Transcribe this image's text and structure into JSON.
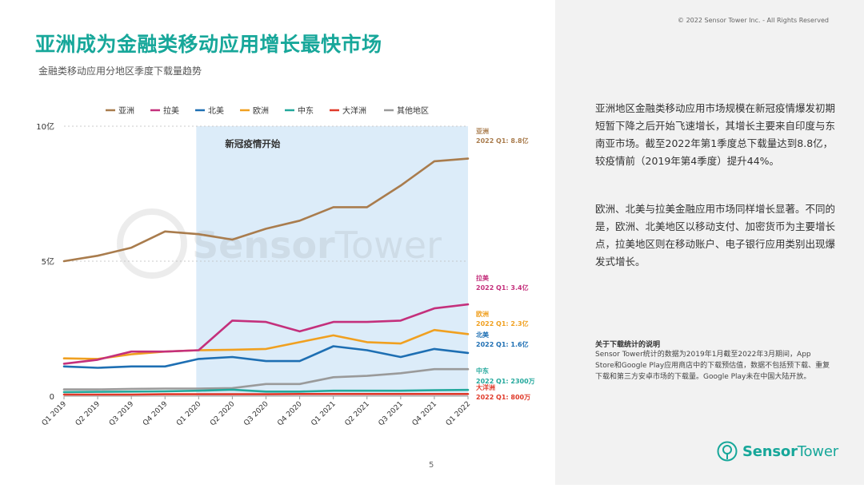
{
  "copyright": "© 2022 Sensor Tower Inc. - All Rights Reserved",
  "title": "亚洲成为金融类移动应用增长最快市场",
  "subtitle": "金融类移动应用分地区季度下载量趋势",
  "paragraph1": "亚洲地区金融类移动应用市场规模在新冠疫情爆发初期短暂下降之后开始飞速增长，其增长主要来自印度与东南亚市场。截至2022年第1季度总下载量达到8.8亿，较疫情前（2019年第4季度）提升44%。",
  "paragraph2": "欧洲、北美与拉美金融应用市场同样增长显著。不同的是，欧洲、北美地区以移动支付、加密货币为主要增长点，拉美地区则在移动账户、电子银行应用类别出现爆发式增长。",
  "note_title": "关于下载统计的说明",
  "note_body": "Sensor Tower统计的数据为2019年1月截至2022年3月期间，App Store和Google Play应用商店中的下载预估值，数据不包括预下载、重复下载和第三方安卓市场的下载量。Google Play未在中国大陆开放。",
  "page_number": "5",
  "logo": {
    "brand_bold": "Sensor",
    "brand_light": "Tower",
    "icon": "sensor-tower-logo-icon"
  },
  "watermark": {
    "brand_bold": "Sensor",
    "brand_light": "Tower"
  },
  "colors": {
    "accent": "#17a79a",
    "shade": "#dcecf9"
  },
  "chart_data": {
    "type": "line",
    "categories": [
      "Q1 2019",
      "Q2 2019",
      "Q3 2019",
      "Q4 2019",
      "Q1 2020",
      "Q2 2020",
      "Q3 2020",
      "Q4 2020",
      "Q1 2021",
      "Q2 2021",
      "Q3 2021",
      "Q4 2021",
      "Q1 2022"
    ],
    "ylim": [
      0,
      10
    ],
    "yticks": [
      {
        "value": 0,
        "label": "0"
      },
      {
        "value": 5,
        "label": "5亿"
      },
      {
        "value": 10,
        "label": "10亿"
      }
    ],
    "grid": true,
    "shaded_region": {
      "from_index": 4,
      "to_index": 12,
      "label": "新冠疫情开始"
    },
    "legend_position": "top",
    "series": [
      {
        "name": "亚洲",
        "color": "#a97c4d",
        "values": [
          5.0,
          5.2,
          5.5,
          6.1,
          6.0,
          5.8,
          6.2,
          6.5,
          7.0,
          7.0,
          7.8,
          8.7,
          8.8
        ],
        "end_label_name": "亚洲",
        "end_label_value": "2022 Q1: 8.8亿"
      },
      {
        "name": "拉美",
        "color": "#c4307c",
        "values": [
          1.2,
          1.35,
          1.65,
          1.65,
          1.7,
          2.8,
          2.75,
          2.4,
          2.75,
          2.75,
          2.8,
          3.25,
          3.4
        ],
        "end_label_name": "拉美",
        "end_label_value": "2022 Q1: 3.4亿"
      },
      {
        "name": "北美",
        "color": "#1e6fb3",
        "values": [
          1.1,
          1.05,
          1.1,
          1.1,
          1.38,
          1.45,
          1.3,
          1.3,
          1.85,
          1.7,
          1.45,
          1.75,
          1.6
        ],
        "end_label_name": "北美",
        "end_label_value": "2022 Q1: 1.6亿"
      },
      {
        "name": "欧洲",
        "color": "#f0a020",
        "values": [
          1.4,
          1.38,
          1.55,
          1.65,
          1.7,
          1.72,
          1.75,
          2.0,
          2.25,
          2.0,
          1.95,
          2.45,
          2.3
        ],
        "end_label_name": "欧洲",
        "end_label_value": "2022 Q1: 2.3亿"
      },
      {
        "name": "中东",
        "color": "#23a89c",
        "values": [
          0.15,
          0.16,
          0.17,
          0.18,
          0.2,
          0.24,
          0.17,
          0.17,
          0.2,
          0.2,
          0.2,
          0.22,
          0.23
        ],
        "end_label_name": "中东",
        "end_label_value": "2022 Q1: 2300万"
      },
      {
        "name": "大洋洲",
        "color": "#e03a2a",
        "values": [
          0.06,
          0.06,
          0.06,
          0.07,
          0.07,
          0.07,
          0.07,
          0.08,
          0.08,
          0.08,
          0.08,
          0.08,
          0.08
        ],
        "end_label_name": "大洋洲",
        "end_label_value": "2022 Q1: 800万"
      },
      {
        "name": "其他地区",
        "color": "#9a9a9a",
        "values": [
          0.25,
          0.25,
          0.27,
          0.28,
          0.28,
          0.3,
          0.45,
          0.45,
          0.7,
          0.75,
          0.85,
          1.0,
          1.0
        ]
      }
    ]
  }
}
